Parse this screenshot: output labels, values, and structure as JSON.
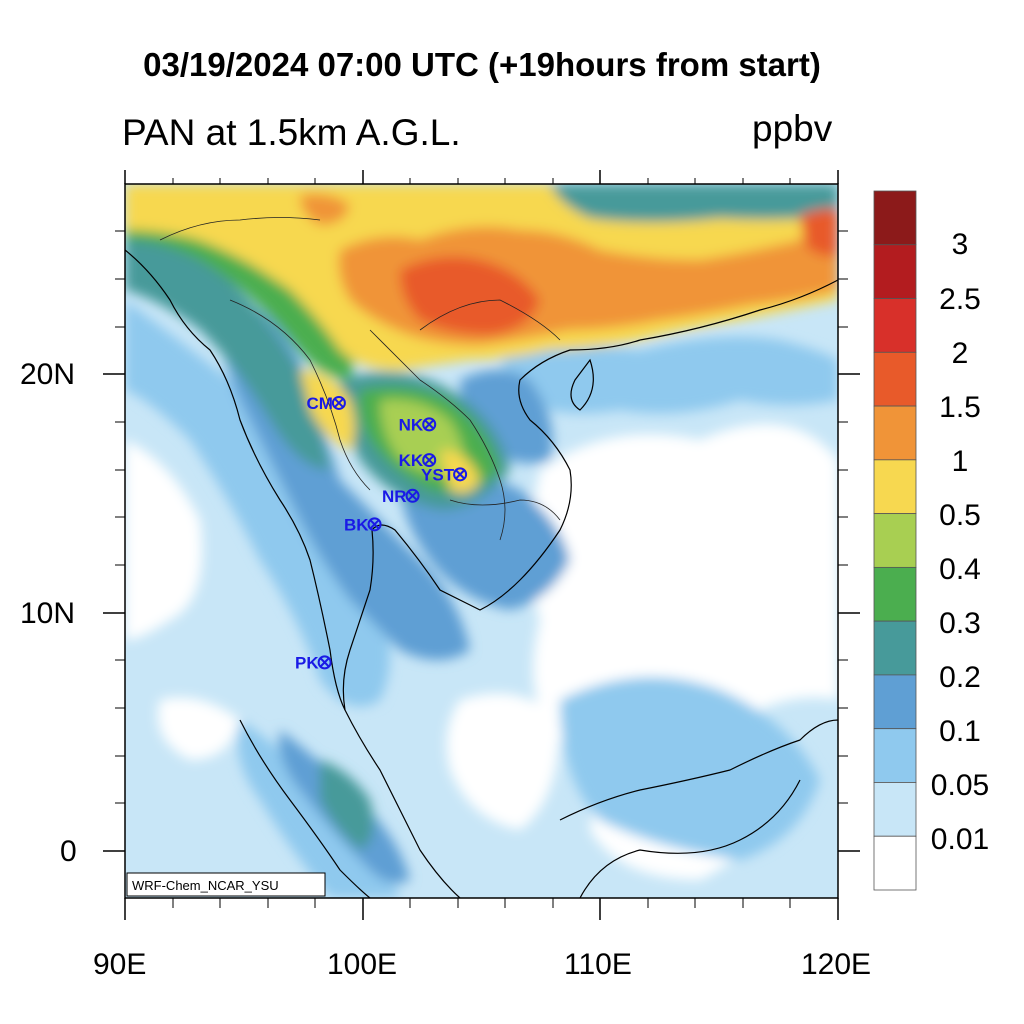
{
  "title": "03/19/2024 07:00 UTC (+19hours from start)",
  "subtitle": "PAN at 1.5km A.G.L.",
  "units": "ppbv",
  "credit": "WRF-Chem_NCAR_YSU",
  "axes": {
    "x_ticks": [
      "90E",
      "100E",
      "110E",
      "120E"
    ],
    "y_ticks": [
      "20N",
      "10N",
      "0"
    ],
    "lon_range": [
      90,
      120
    ],
    "lat_range": [
      -2,
      28
    ]
  },
  "colorbar": {
    "labels": [
      "3",
      "2.5",
      "2",
      "1.5",
      "1",
      "0.5",
      "0.4",
      "0.3",
      "0.2",
      "0.1",
      "0.05",
      "0.01"
    ],
    "colors": [
      "#8c1a1a",
      "#b31c1f",
      "#d8302a",
      "#e85a2a",
      "#f09438",
      "#f7d850",
      "#a8cf52",
      "#4bae4f",
      "#479a9a",
      "#5f9fd4",
      "#8fc9ee",
      "#c8e6f7",
      "#ffffff"
    ]
  },
  "sites": [
    {
      "code": "CM",
      "lon": 99.0,
      "lat": 18.8
    },
    {
      "code": "NK",
      "lon": 102.8,
      "lat": 17.9
    },
    {
      "code": "KK",
      "lon": 102.8,
      "lat": 16.4
    },
    {
      "code": "YST",
      "lon": 104.1,
      "lat": 15.8
    },
    {
      "code": "NR",
      "lon": 102.1,
      "lat": 14.9
    },
    {
      "code": "BK",
      "lon": 100.5,
      "lat": 13.7
    },
    {
      "code": "PK",
      "lon": 98.4,
      "lat": 7.9
    }
  ],
  "colors": {
    "site_label": "#1a1ae6",
    "site_marker": "#1a1ae6"
  }
}
